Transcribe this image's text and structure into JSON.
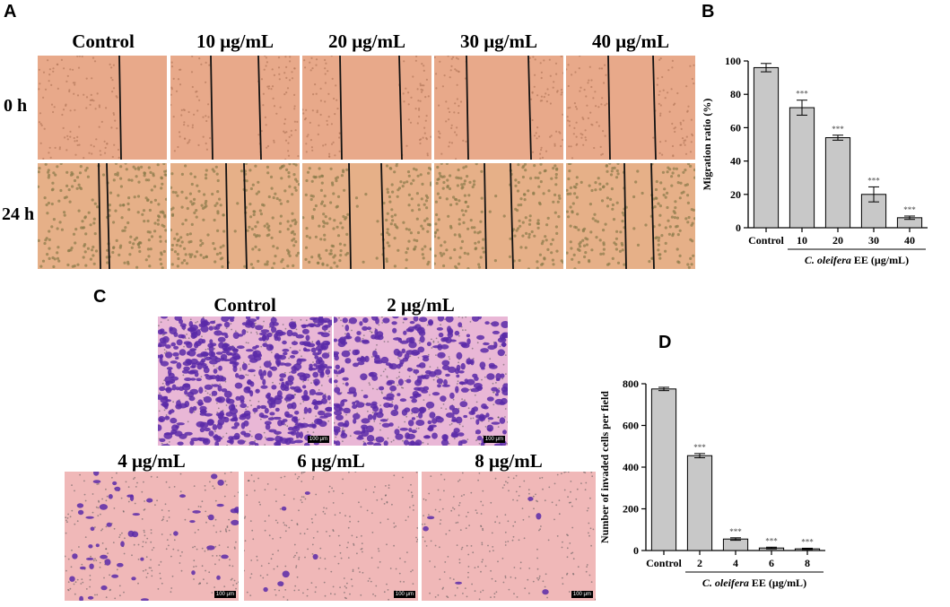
{
  "panels": {
    "A": {
      "letter": "A",
      "columns": [
        "Control",
        "10 μg/mL",
        "20 μg/mL",
        "30 μg/mL",
        "40 μg/mL"
      ],
      "rows": [
        "0 h",
        "24 h"
      ]
    },
    "C": {
      "letter": "C",
      "top_labels": [
        "Control",
        "2 μg/mL"
      ],
      "bottom_labels": [
        "4 μg/mL",
        "6 μg/mL",
        "8 μg/mL"
      ],
      "scale_bar": "100 μm"
    },
    "B": {
      "letter": "B"
    },
    "D": {
      "letter": "D"
    }
  },
  "colors": {
    "wound_bg": "#e8a98a",
    "transwell_bg": "#f0b8b8",
    "crystal_violet": "#5a2aa8",
    "bar_fill": "#c8c8c8"
  },
  "chart_data": [
    {
      "type": "bar",
      "panel": "B",
      "categories": [
        "Control",
        "10",
        "20",
        "30",
        "40"
      ],
      "values": [
        96,
        72,
        54,
        20,
        6
      ],
      "errors": [
        2.5,
        4.5,
        1.5,
        4.5,
        1.0
      ],
      "significance": [
        "",
        "***",
        "***",
        "***",
        "***"
      ],
      "ylabel": "Migration ratio (%)",
      "xlabel_italic": "C. oleifera",
      "xlabel_rest": " EE (μg/mL)",
      "ylim": [
        0,
        100
      ],
      "yticks": [
        0,
        20,
        40,
        60,
        80,
        100
      ]
    },
    {
      "type": "bar",
      "panel": "D",
      "categories": [
        "Control",
        "2",
        "4",
        "6",
        "8"
      ],
      "values": [
        775,
        455,
        55,
        12,
        8
      ],
      "errors": [
        8,
        10,
        6,
        4,
        3
      ],
      "significance": [
        "",
        "***",
        "***",
        "***",
        "***"
      ],
      "ylabel": "Number of invaded cells per field",
      "xlabel_italic": "C. oleifera",
      "xlabel_rest": " EE (μg/mL)",
      "ylim": [
        0,
        800
      ],
      "yticks": [
        0,
        200,
        400,
        600,
        800
      ]
    }
  ]
}
